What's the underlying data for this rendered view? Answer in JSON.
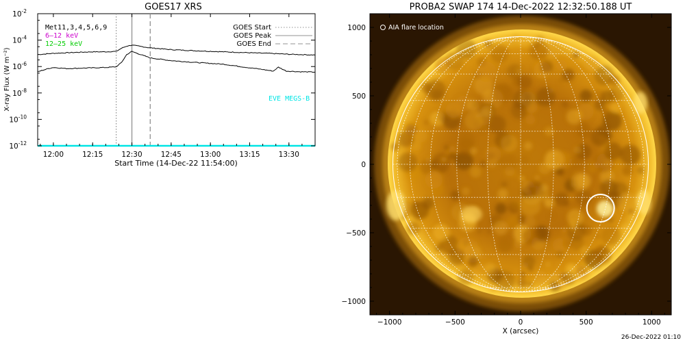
{
  "footer_timestamp": "26-Dec-2022 01:10",
  "chart_data": [
    {
      "type": "line",
      "title": "GOES17 XRS",
      "xlabel": "Start Time (14-Dec-22 11:54:00)",
      "ylabel": "X-ray Flux (W m⁻²)",
      "y_scale": "log",
      "ylim": [
        1e-12,
        0.01
      ],
      "xlim": [
        "11:54",
        "13:40"
      ],
      "x_ticks": [
        "12:00",
        "12:15",
        "12:30",
        "12:45",
        "13:00",
        "13:15",
        "13:30"
      ],
      "y_ticks": [
        {
          "exp": "-12",
          "value": 1e-12
        },
        {
          "exp": "-10",
          "value": 1e-10
        },
        {
          "exp": "-8",
          "value": 1e-08
        },
        {
          "exp": "-6",
          "value": 1e-06
        },
        {
          "exp": "-4",
          "value": 0.0001
        },
        {
          "exp": "-2",
          "value": 0.01
        }
      ],
      "grid": false,
      "annotations": {
        "instrument_labels": [
          {
            "text": "Met11,3,4,5,6,9",
            "color": "#000000"
          },
          {
            "text": "6–12 keV",
            "color": "#cc00cc"
          },
          {
            "text": "12–25 keV",
            "color": "#00cc00"
          }
        ],
        "right_label": {
          "text": "EVE MEGS-B",
          "color": "#00e5e5"
        }
      },
      "legend": {
        "placement": "top-right",
        "entries": [
          {
            "label": "GOES Start",
            "style": "dotted"
          },
          {
            "label": "GOES Peak",
            "style": "solid"
          },
          {
            "label": "GOES End",
            "style": "dashed"
          }
        ]
      },
      "vertical_markers": [
        {
          "name": "GOES Start",
          "time": "12:24",
          "color": "#909090",
          "style": "dotted"
        },
        {
          "name": "GOES Peak",
          "time": "12:30",
          "color": "#909090",
          "style": "solid"
        },
        {
          "name": "GOES End",
          "time": "12:37",
          "color": "#909090",
          "style": "dashed"
        }
      ],
      "series": [
        {
          "color": "#000000",
          "points": [
            [
              "11:54",
              8e-06
            ],
            [
              "12:00",
              1e-05
            ],
            [
              "12:05",
              1.1e-05
            ],
            [
              "12:10",
              1.2e-05
            ],
            [
              "12:15",
              1.3e-05
            ],
            [
              "12:20",
              1.3e-05
            ],
            [
              "12:24",
              1.4e-05
            ],
            [
              "12:26",
              2.4e-05
            ],
            [
              "12:28",
              3.5e-05
            ],
            [
              "12:30",
              4.2e-05
            ],
            [
              "12:33",
              3.4e-05
            ],
            [
              "12:37",
              2.6e-05
            ],
            [
              "12:45",
              1.9e-05
            ],
            [
              "12:55",
              1.55e-05
            ],
            [
              "13:05",
              1.3e-05
            ],
            [
              "13:15",
              1.1e-05
            ],
            [
              "13:22",
              1e-05
            ],
            [
              "13:30",
              8.5e-06
            ],
            [
              "13:40",
              7.5e-06
            ]
          ]
        },
        {
          "color": "#000000",
          "points": [
            [
              "11:54",
              4e-07
            ],
            [
              "11:58",
              7e-07
            ],
            [
              "12:00",
              8.5e-07
            ],
            [
              "12:05",
              7e-07
            ],
            [
              "12:10",
              7.5e-07
            ],
            [
              "12:15",
              8e-07
            ],
            [
              "12:20",
              8.5e-07
            ],
            [
              "12:24",
              9.5e-07
            ],
            [
              "12:26",
              2e-06
            ],
            [
              "12:28",
              8e-06
            ],
            [
              "12:30",
              1.4e-05
            ],
            [
              "12:32",
              1e-05
            ],
            [
              "12:37",
              4.5e-06
            ],
            [
              "12:45",
              2.8e-06
            ],
            [
              "12:55",
              2e-06
            ],
            [
              "13:05",
              1.5e-06
            ],
            [
              "13:15",
              8e-07
            ],
            [
              "13:20",
              6e-07
            ],
            [
              "13:24",
              4.5e-07
            ],
            [
              "13:26",
              9e-07
            ],
            [
              "13:29",
              4.5e-07
            ],
            [
              "13:35",
              4e-07
            ],
            [
              "13:40",
              3.8e-07
            ]
          ]
        },
        {
          "name": "EVE MEGS-B",
          "color": "#00e5e5",
          "points": [
            [
              "11:54",
              1e-12
            ],
            [
              "13:40",
              1e-12
            ]
          ]
        }
      ]
    },
    {
      "type": "image",
      "title": "PROBA2 SWAP 174 14-Dec-2022 12:32:50.188 UT",
      "xlabel": "X (arcsec)",
      "ylabel": "",
      "xlim": [
        -1150,
        1150
      ],
      "ylim": [
        -1100,
        1100
      ],
      "x_ticks": [
        -1000,
        -500,
        0,
        500,
        1000
      ],
      "y_ticks": [
        -1000,
        -500,
        0,
        500,
        1000
      ],
      "legend": {
        "placement": "top-left",
        "label": "AIA flare location"
      },
      "flare_location": {
        "x": 610,
        "y": -320
      },
      "solar_radius_arcsec": 975
    }
  ]
}
